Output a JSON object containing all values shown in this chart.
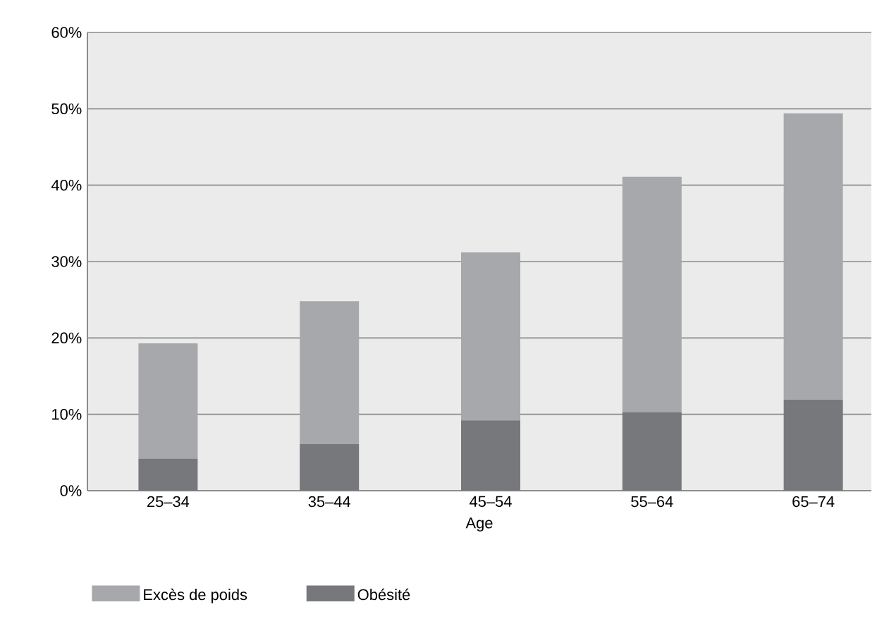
{
  "chart_data": {
    "type": "bar",
    "stacked": true,
    "xlabel": "Age",
    "categories": [
      "25–34",
      "35–44",
      "45–54",
      "55–64",
      "65–74"
    ],
    "series": [
      {
        "name": "Obésité",
        "color": "#77787c",
        "values": [
          4.2,
          6.1,
          9.2,
          10.3,
          11.9
        ]
      },
      {
        "name": "Excès de poids",
        "color": "#a7a8ab",
        "values": [
          15.1,
          18.7,
          22.0,
          30.8,
          37.5
        ]
      }
    ],
    "ylim": [
      0,
      60
    ],
    "yticks": [
      {
        "value": 0,
        "label": "0%"
      },
      {
        "value": 10,
        "label": "10%"
      },
      {
        "value": 20,
        "label": "20%"
      },
      {
        "value": 30,
        "label": "30%"
      },
      {
        "value": 40,
        "label": "40%"
      },
      {
        "value": 50,
        "label": "50%"
      },
      {
        "value": 60,
        "label": "60%"
      }
    ],
    "grid": "y",
    "legend": "bottom"
  }
}
